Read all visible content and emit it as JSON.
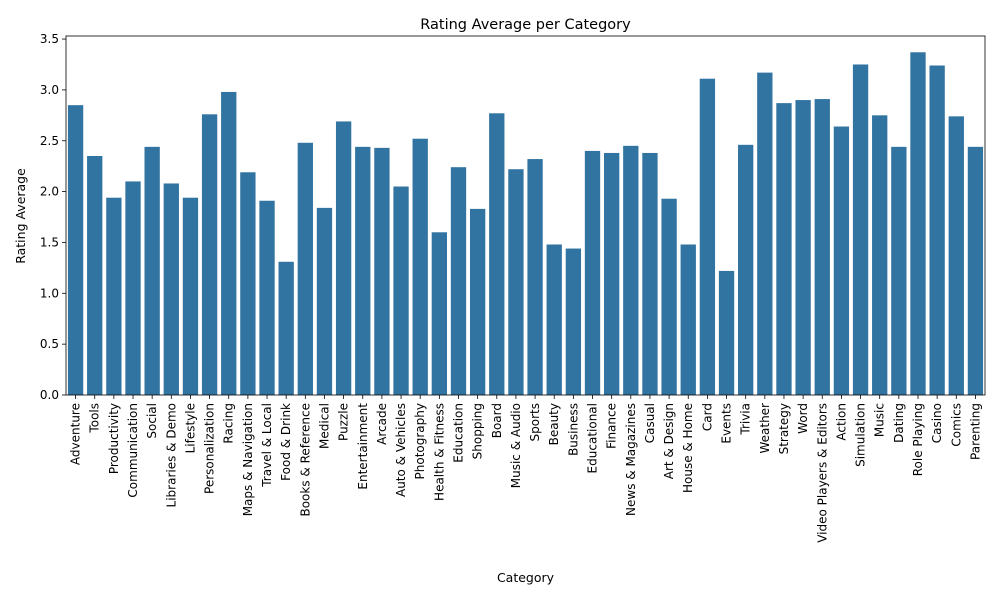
{
  "chart_data": {
    "type": "bar",
    "title": "Rating Average per Category",
    "xlabel": "Category",
    "ylabel": "Rating Average",
    "ylim": [
      0,
      3.53
    ],
    "yticks": [
      "0.0",
      "0.5",
      "1.0",
      "1.5",
      "2.0",
      "2.5",
      "3.0",
      "3.5"
    ],
    "grid": false,
    "bar_color": "#3274a1",
    "categories": [
      "Adventure",
      "Tools",
      "Productivity",
      "Communication",
      "Social",
      "Libraries & Demo",
      "Lifestyle",
      "Personalization",
      "Racing",
      "Maps & Navigation",
      "Travel & Local",
      "Food & Drink",
      "Books & Reference",
      "Medical",
      "Puzzle",
      "Entertainment",
      "Arcade",
      "Auto & Vehicles",
      "Photography",
      "Health & Fitness",
      "Education",
      "Shopping",
      "Board",
      "Music & Audio",
      "Sports",
      "Beauty",
      "Business",
      "Educational",
      "Finance",
      "News & Magazines",
      "Casual",
      "Art & Design",
      "House & Home",
      "Card",
      "Events",
      "Trivia",
      "Weather",
      "Strategy",
      "Word",
      "Video Players & Editors",
      "Action",
      "Simulation",
      "Music",
      "Dating",
      "Role Playing",
      "Casino",
      "Comics",
      "Parenting"
    ],
    "values": [
      2.85,
      2.35,
      1.94,
      2.1,
      2.44,
      2.08,
      1.94,
      2.76,
      2.98,
      2.19,
      1.91,
      1.31,
      2.48,
      1.84,
      2.69,
      2.44,
      2.43,
      2.05,
      2.52,
      1.6,
      2.24,
      1.83,
      2.77,
      2.22,
      2.32,
      1.48,
      1.44,
      2.4,
      2.38,
      2.45,
      2.38,
      1.93,
      1.48,
      3.11,
      1.22,
      2.46,
      3.17,
      2.87,
      2.9,
      2.91,
      2.64,
      3.25,
      2.75,
      2.44,
      3.37,
      3.24,
      2.74,
      2.44
    ]
  }
}
